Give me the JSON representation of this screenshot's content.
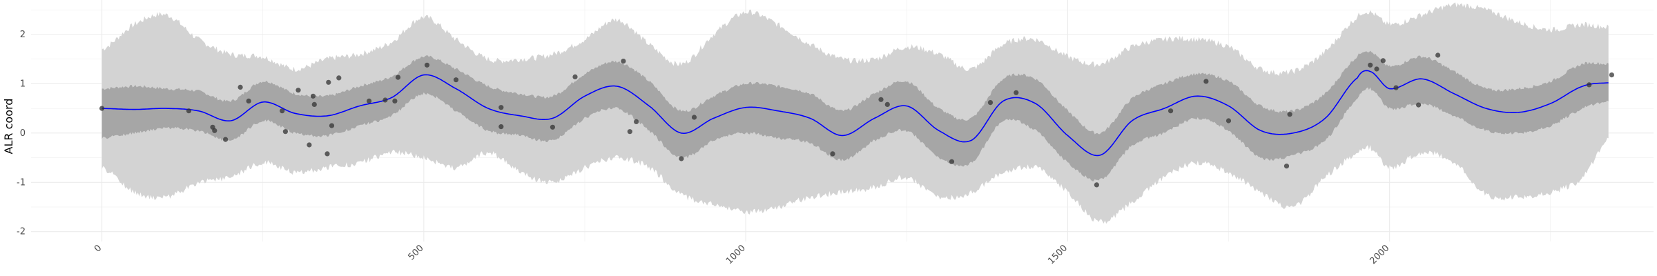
{
  "chart_data": {
    "type": "line",
    "title": "",
    "xlabel": "",
    "ylabel": "ALR coord",
    "xlim": [
      -110,
      2410
    ],
    "ylim": [
      -2.2,
      2.7
    ],
    "x_ticks": [
      0,
      500,
      1000,
      1500,
      2000
    ],
    "y_ticks": [
      -2,
      -1,
      0,
      1,
      2
    ],
    "grid": true,
    "legend": "none",
    "colors": {
      "mean_line": "#0000ff",
      "inner_band": "#a6a6a6",
      "outer_band": "#d3d3d3",
      "points": "#333333",
      "grid": "#ebebeb"
    },
    "series": [
      {
        "type": "line",
        "x": [
          0,
          50,
          100,
          150,
          200,
          250,
          300,
          350,
          400,
          450,
          500,
          550,
          600,
          650,
          700,
          750,
          800,
          850,
          900,
          950,
          1000,
          1050,
          1100,
          1150,
          1200,
          1250,
          1300,
          1350,
          1400,
          1450,
          1500,
          1550,
          1600,
          1650,
          1700,
          1750,
          1800,
          1850,
          1900,
          1950,
          1970,
          2000,
          2050,
          2100,
          2150,
          2200,
          2250,
          2300,
          2340
        ],
        "y": [
          0.5,
          0.48,
          0.5,
          0.45,
          0.25,
          0.63,
          0.4,
          0.35,
          0.55,
          0.72,
          1.18,
          0.9,
          0.5,
          0.35,
          0.3,
          0.75,
          0.95,
          0.55,
          0.0,
          0.3,
          0.52,
          0.45,
          0.3,
          -0.05,
          0.3,
          0.55,
          0.05,
          -0.15,
          0.65,
          0.6,
          -0.05,
          -0.45,
          0.25,
          0.5,
          0.75,
          0.55,
          0.05,
          0.0,
          0.3,
          1.12,
          1.25,
          0.9,
          1.1,
          0.8,
          0.5,
          0.42,
          0.6,
          0.95,
          1.02
        ]
      },
      {
        "type": "band",
        "level": "inner",
        "x": [
          0,
          50,
          100,
          150,
          200,
          250,
          300,
          350,
          400,
          450,
          500,
          550,
          600,
          650,
          700,
          750,
          800,
          850,
          900,
          950,
          1000,
          1050,
          1100,
          1150,
          1200,
          1250,
          1300,
          1350,
          1400,
          1450,
          1500,
          1550,
          1600,
          1650,
          1700,
          1750,
          1800,
          1850,
          1900,
          1950,
          1970,
          2000,
          2050,
          2100,
          2150,
          2200,
          2250,
          2300,
          2340
        ],
        "lower": [
          -0.1,
          0.0,
          0.1,
          0.05,
          -0.15,
          0.25,
          0.0,
          -0.05,
          0.15,
          0.35,
          0.8,
          0.45,
          0.05,
          -0.05,
          -0.15,
          0.3,
          0.5,
          0.05,
          -0.5,
          -0.15,
          0.0,
          -0.1,
          -0.2,
          -0.55,
          -0.15,
          0.05,
          -0.5,
          -0.6,
          0.25,
          0.05,
          -0.6,
          -0.95,
          -0.25,
          0.0,
          0.3,
          0.05,
          -0.5,
          -0.45,
          -0.15,
          0.7,
          0.9,
          0.5,
          0.6,
          0.35,
          0.05,
          0.0,
          0.15,
          0.5,
          0.65
        ],
        "upper": [
          0.9,
          0.95,
          0.9,
          0.85,
          0.65,
          1.05,
          0.8,
          0.75,
          0.95,
          1.15,
          1.55,
          1.3,
          0.95,
          0.8,
          0.75,
          1.2,
          1.45,
          1.05,
          0.45,
          0.75,
          1.0,
          0.95,
          0.8,
          0.45,
          0.8,
          1.05,
          0.5,
          0.3,
          1.1,
          1.1,
          0.45,
          0.0,
          0.7,
          1.0,
          1.2,
          1.05,
          0.55,
          0.45,
          0.8,
          1.55,
          1.65,
          1.35,
          1.55,
          1.25,
          0.9,
          0.9,
          1.05,
          1.4,
          1.4
        ]
      },
      {
        "type": "band",
        "level": "outer",
        "x": [
          0,
          50,
          100,
          150,
          200,
          250,
          300,
          350,
          400,
          450,
          500,
          550,
          600,
          650,
          700,
          750,
          800,
          850,
          900,
          950,
          1000,
          1050,
          1100,
          1150,
          1200,
          1250,
          1300,
          1350,
          1400,
          1450,
          1500,
          1550,
          1600,
          1650,
          1700,
          1750,
          1800,
          1850,
          1900,
          1950,
          1970,
          2000,
          2050,
          2100,
          2150,
          2200,
          2250,
          2300,
          2340
        ],
        "lower": [
          -0.7,
          -1.2,
          -1.3,
          -1.0,
          -0.9,
          -0.6,
          -0.8,
          -0.7,
          -0.6,
          -0.4,
          -0.5,
          -0.7,
          -0.4,
          -0.8,
          -1.0,
          -0.7,
          -0.5,
          -0.7,
          -1.25,
          -1.45,
          -1.6,
          -1.5,
          -1.3,
          -1.2,
          -1.1,
          -0.9,
          -1.3,
          -1.2,
          -0.8,
          -0.7,
          -1.2,
          -1.8,
          -1.4,
          -0.9,
          -0.6,
          -0.8,
          -1.2,
          -1.5,
          -0.9,
          -0.4,
          -0.3,
          -0.7,
          -0.4,
          -0.6,
          -1.25,
          -1.3,
          -1.2,
          -0.9,
          -0.1
        ],
        "upper": [
          1.7,
          2.2,
          2.4,
          1.9,
          1.6,
          1.55,
          1.3,
          1.5,
          1.6,
          1.85,
          2.35,
          1.9,
          1.5,
          1.5,
          1.6,
          1.9,
          2.3,
          1.8,
          1.4,
          2.0,
          2.45,
          2.2,
          1.8,
          1.5,
          1.5,
          1.75,
          1.6,
          1.3,
          1.8,
          1.9,
          1.55,
          1.4,
          1.75,
          1.9,
          1.9,
          1.75,
          1.3,
          1.25,
          1.65,
          2.35,
          2.45,
          2.2,
          2.4,
          2.6,
          2.5,
          2.25,
          2.1,
          2.2,
          2.15
        ]
      },
      {
        "type": "scatter",
        "points": [
          [
            0,
            0.5
          ],
          [
            135,
            0.45
          ],
          [
            172,
            0.12
          ],
          [
            175,
            0.05
          ],
          [
            192,
            -0.13
          ],
          [
            215,
            0.93
          ],
          [
            228,
            0.65
          ],
          [
            280,
            0.45
          ],
          [
            285,
            0.03
          ],
          [
            305,
            0.87
          ],
          [
            322,
            -0.24
          ],
          [
            328,
            0.75
          ],
          [
            330,
            0.58
          ],
          [
            350,
            -0.42
          ],
          [
            352,
            1.03
          ],
          [
            357,
            0.15
          ],
          [
            368,
            1.12
          ],
          [
            415,
            0.65
          ],
          [
            440,
            0.67
          ],
          [
            455,
            0.65
          ],
          [
            460,
            1.13
          ],
          [
            505,
            1.38
          ],
          [
            550,
            1.08
          ],
          [
            620,
            0.52
          ],
          [
            620,
            0.13
          ],
          [
            700,
            0.12
          ],
          [
            735,
            1.14
          ],
          [
            810,
            1.46
          ],
          [
            820,
            0.03
          ],
          [
            830,
            0.23
          ],
          [
            900,
            -0.52
          ],
          [
            920,
            0.32
          ],
          [
            1135,
            -0.42
          ],
          [
            1210,
            0.68
          ],
          [
            1220,
            0.58
          ],
          [
            1320,
            -0.58
          ],
          [
            1380,
            0.62
          ],
          [
            1420,
            0.82
          ],
          [
            1545,
            -1.05
          ],
          [
            1660,
            0.45
          ],
          [
            1715,
            1.05
          ],
          [
            1750,
            0.25
          ],
          [
            1840,
            -0.67
          ],
          [
            1845,
            0.38
          ],
          [
            1970,
            1.38
          ],
          [
            1980,
            1.3
          ],
          [
            1990,
            1.47
          ],
          [
            2010,
            0.92
          ],
          [
            2045,
            0.57
          ],
          [
            2075,
            1.58
          ],
          [
            2310,
            0.98
          ],
          [
            2345,
            1.18
          ]
        ]
      }
    ]
  }
}
